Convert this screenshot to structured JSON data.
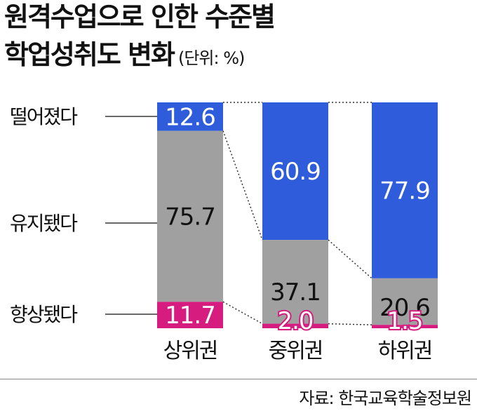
{
  "title_line1": "원격수업으로 인한 수준별",
  "title_line2": "학업성취도 변화",
  "unit": "(단위: %)",
  "source": "자료: 한국교육학술정보원",
  "colors": {
    "dropped": "#2f5cdb",
    "maintained": "#a0a0a0",
    "improved": "#d61c7f",
    "label_text": "#111111",
    "improved_label": "#ffffff"
  },
  "chart_data": {
    "type": "bar",
    "stacked": true,
    "normalized_100": true,
    "categories": [
      "상위권",
      "중위권",
      "하위권"
    ],
    "series": [
      {
        "name": "향상됐다",
        "values": [
          11.7,
          2.0,
          1.5
        ]
      },
      {
        "name": "유지됐다",
        "values": [
          75.7,
          37.1,
          20.6
        ]
      },
      {
        "name": "떨어졌다",
        "values": [
          12.6,
          60.9,
          77.9
        ]
      }
    ],
    "value_labels": {
      "향상됐다": [
        "11.7",
        "2.0",
        "1.5"
      ],
      "유지됐다": [
        "75.7",
        "37.1",
        "20.6"
      ],
      "떨어졌다": [
        "12.6",
        "60.9",
        "77.9"
      ]
    },
    "legend": "left, labels connected by lines to the first bar",
    "connectors": "dotted lines link segment boundaries between adjacent bars",
    "grid": false
  }
}
